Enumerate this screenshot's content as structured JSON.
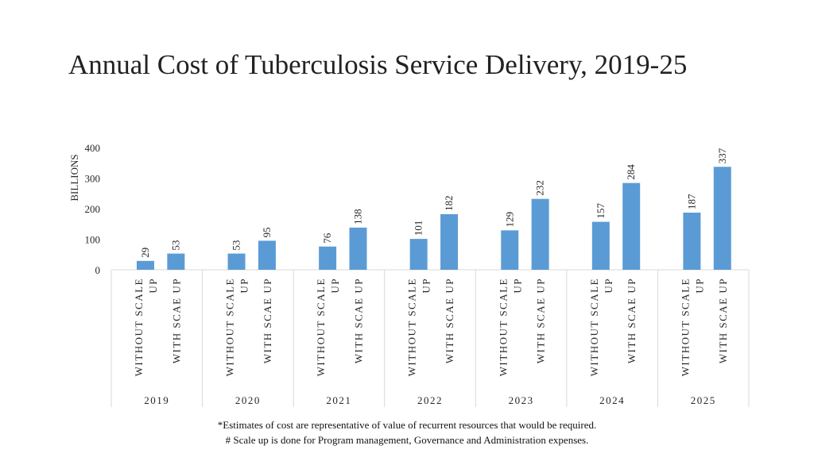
{
  "title": "Annual Cost of Tuberculosis Service Delivery, 2019-25",
  "notes": [
    "*Estimates of cost are representative of value of recurrent resources that would be required.",
    "# Scale up is done for Program management, Governance and Administration expenses."
  ],
  "chart_data": {
    "type": "bar",
    "ylabel": "BILLIONS",
    "ylim": [
      0,
      400
    ],
    "yticks": [
      0,
      100,
      200,
      300,
      400
    ],
    "grid": false,
    "legend": "none",
    "bar_color": "#5B9BD5",
    "groups": [
      {
        "year": "2019",
        "bars": [
          {
            "label": "WITHOUT SCALE UP",
            "value": 29
          },
          {
            "label": "WITH SCAE UP",
            "value": 53
          }
        ]
      },
      {
        "year": "2020",
        "bars": [
          {
            "label": "WITHOUT SCALE UP",
            "value": 53
          },
          {
            "label": "WITH SCAE UP",
            "value": 95
          }
        ]
      },
      {
        "year": "2021",
        "bars": [
          {
            "label": "WITHOUT SCALE UP",
            "value": 76
          },
          {
            "label": "WITH SCAE UP",
            "value": 138
          }
        ]
      },
      {
        "year": "2022",
        "bars": [
          {
            "label": "WITHOUT SCALE UP",
            "value": 101
          },
          {
            "label": "WITH SCAE UP",
            "value": 182
          }
        ]
      },
      {
        "year": "2023",
        "bars": [
          {
            "label": "WITHOUT SCALE UP",
            "value": 129
          },
          {
            "label": "WITH SCAE UP",
            "value": 232
          }
        ]
      },
      {
        "year": "2024",
        "bars": [
          {
            "label": "WITHOUT SCALE UP",
            "value": 157
          },
          {
            "label": "WITH SCAE UP",
            "value": 284
          }
        ]
      },
      {
        "year": "2025",
        "bars": [
          {
            "label": "WITHOUT SCALE UP",
            "value": 187
          },
          {
            "label": "WITH SCAE UP",
            "value": 337
          }
        ]
      }
    ]
  }
}
